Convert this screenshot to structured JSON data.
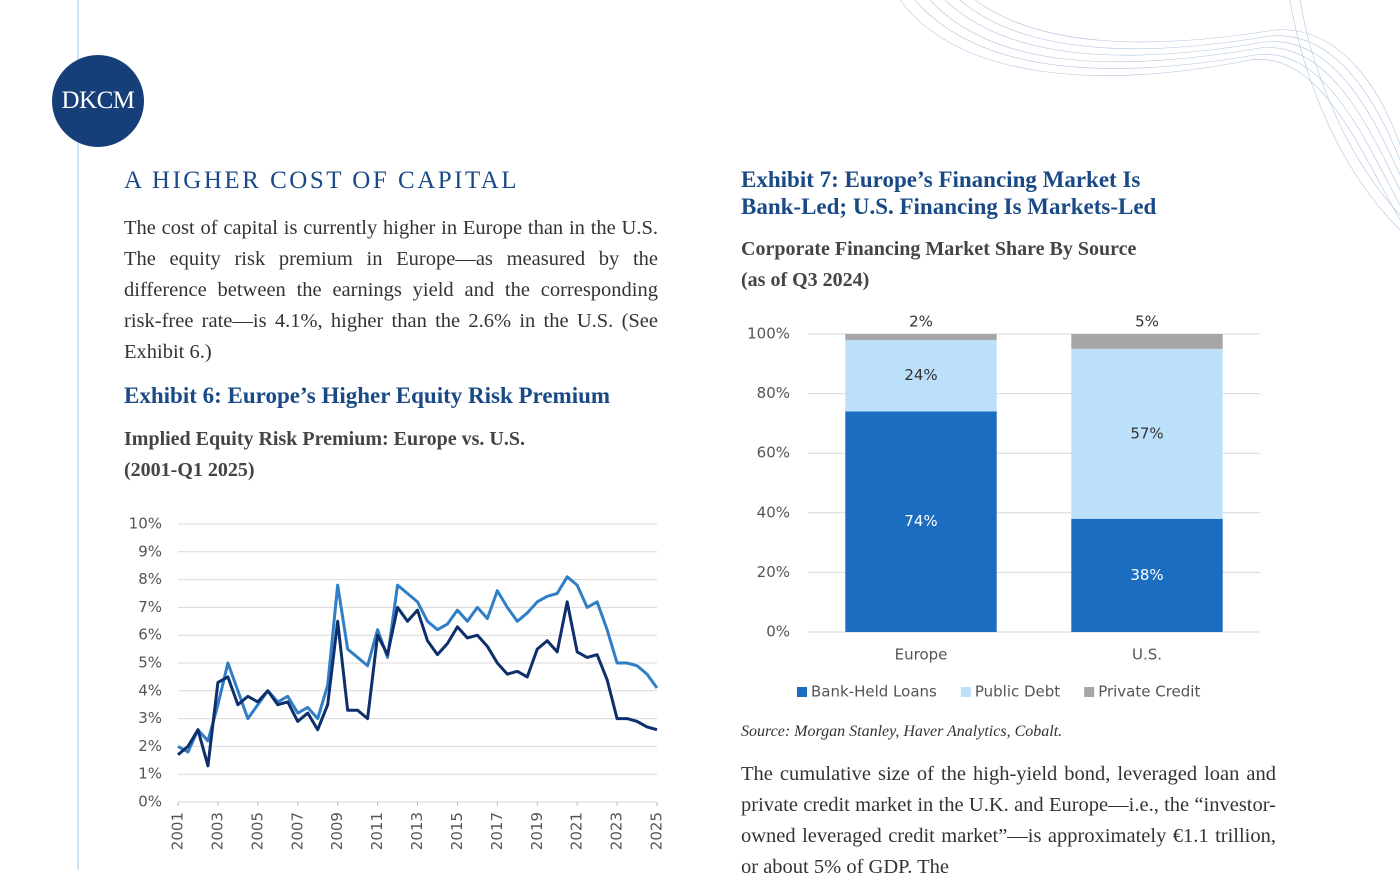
{
  "logo": "DKCM",
  "section_title": "A HIGHER COST OF CAPITAL",
  "paragraphs": [
    "The cost of capital is currently higher in Europe than in the U.S. The equity risk premium in Europe—as measured by the difference between the earnings yield and the corresponding risk-free rate—is 4.1%, higher than the 2.6% in the U.S. (See Exhibit 6.)",
    "The cumulative size of the high-yield bond, leveraged loan and private credit market in the U.K. and Europe—i.e., the “investor-owned leveraged credit market”—is approximately €1.1 trillion, or about 5% of GDP. The"
  ],
  "exhibits": [
    {
      "title": [
        "Exhibit 6:  Europe’s Higher Equity Risk Premium"
      ],
      "subtitle": [
        "Implied Equity Risk Premium: Europe vs. U.S.",
        "(2001-Q1 2025)"
      ]
    },
    {
      "title": [
        "Exhibit 7:  Europe’s Financing Market Is",
        "Bank-Led; U.S. Financing Is Markets-Led"
      ],
      "subtitle": [
        "Corporate Financing Market Share By Source",
        "(as of Q3 2024)"
      ],
      "source": "Source: Morgan Stanley, Haver Analytics, Cobalt."
    }
  ],
  "chart_data": [
    {
      "type": "line",
      "x": [
        2001,
        2001.5,
        2002,
        2002.5,
        2003,
        2003.5,
        2004,
        2004.5,
        2005,
        2005.5,
        2006,
        2006.5,
        2007,
        2007.5,
        2008,
        2008.5,
        2009,
        2009.5,
        2010,
        2010.5,
        2011,
        2011.5,
        2012,
        2012.5,
        2013,
        2013.5,
        2014,
        2014.5,
        2015,
        2015.5,
        2016,
        2016.5,
        2017,
        2017.5,
        2018,
        2018.5,
        2019,
        2019.5,
        2020,
        2020.5,
        2021,
        2021.5,
        2022,
        2022.5,
        2023,
        2023.5,
        2024,
        2024.5,
        2025
      ],
      "series": [
        {
          "color": "#2f7ec6",
          "values": [
            2.0,
            1.8,
            2.6,
            2.2,
            3.5,
            5.0,
            4.0,
            3.0,
            3.5,
            4.0,
            3.6,
            3.8,
            3.2,
            3.4,
            3.0,
            4.2,
            7.8,
            5.5,
            5.2,
            4.9,
            6.2,
            5.2,
            7.8,
            7.5,
            7.2,
            6.5,
            6.2,
            6.4,
            6.9,
            6.5,
            7.0,
            6.6,
            7.6,
            7.0,
            6.5,
            6.8,
            7.2,
            7.4,
            7.5,
            8.1,
            7.8,
            7.0,
            7.2,
            6.2,
            5.0,
            5.0,
            4.9,
            4.6,
            4.1
          ]
        },
        {
          "color": "#0d2f6b",
          "values": [
            1.7,
            2.0,
            2.6,
            1.3,
            4.3,
            4.5,
            3.5,
            3.8,
            3.6,
            4.0,
            3.5,
            3.6,
            2.9,
            3.2,
            2.6,
            3.5,
            6.5,
            3.3,
            3.3,
            3.0,
            6.0,
            5.3,
            7.0,
            6.5,
            6.9,
            5.8,
            5.3,
            5.7,
            6.3,
            5.9,
            6.0,
            5.6,
            5.0,
            4.6,
            4.7,
            4.5,
            5.5,
            5.8,
            5.4,
            7.2,
            5.4,
            5.2,
            5.3,
            4.4,
            3.0,
            3.0,
            2.9,
            2.7,
            2.6
          ]
        }
      ],
      "xlim": [
        2001,
        2025
      ],
      "xticks": [
        2001,
        2003,
        2005,
        2007,
        2009,
        2011,
        2013,
        2015,
        2017,
        2019,
        2021,
        2023,
        2025
      ],
      "ylim": [
        0,
        10
      ],
      "yticks": [
        {
          "value": 0,
          "label": "0%"
        },
        {
          "value": 1,
          "label": "1%"
        },
        {
          "value": 2,
          "label": "2%"
        },
        {
          "value": 3,
          "label": "3%"
        },
        {
          "value": 4,
          "label": "4%"
        },
        {
          "value": 5,
          "label": "5%"
        },
        {
          "value": 6,
          "label": "6%"
        },
        {
          "value": 7,
          "label": "7%"
        },
        {
          "value": 8,
          "label": "8%"
        },
        {
          "value": 9,
          "label": "9%"
        },
        {
          "value": 10,
          "label": "10%"
        }
      ],
      "grid": true
    },
    {
      "type": "bar",
      "stacked": true,
      "categories": [
        "Europe",
        "U.S."
      ],
      "series": [
        {
          "name": "Bank-Held Loans",
          "color": "#1b6dbf",
          "values": [
            74,
            38
          ],
          "value_labels": [
            "74%",
            "38%"
          ]
        },
        {
          "name": "Public Debt",
          "color": "#bde0fa",
          "values": [
            24,
            57
          ],
          "value_labels": [
            "24%",
            "57%"
          ]
        },
        {
          "name": "Private Credit",
          "color": "#a6a6a6",
          "values": [
            2,
            5
          ],
          "value_labels": [
            "2%",
            "5%"
          ]
        }
      ],
      "ylim": [
        0,
        100
      ],
      "yticks": [
        {
          "value": 0,
          "label": "0%"
        },
        {
          "value": 20,
          "label": "20%"
        },
        {
          "value": 40,
          "label": "40%"
        },
        {
          "value": 60,
          "label": "60%"
        },
        {
          "value": 80,
          "label": "80%"
        },
        {
          "value": 100,
          "label": "100%"
        }
      ],
      "grid": true,
      "legend": "bottom"
    }
  ]
}
